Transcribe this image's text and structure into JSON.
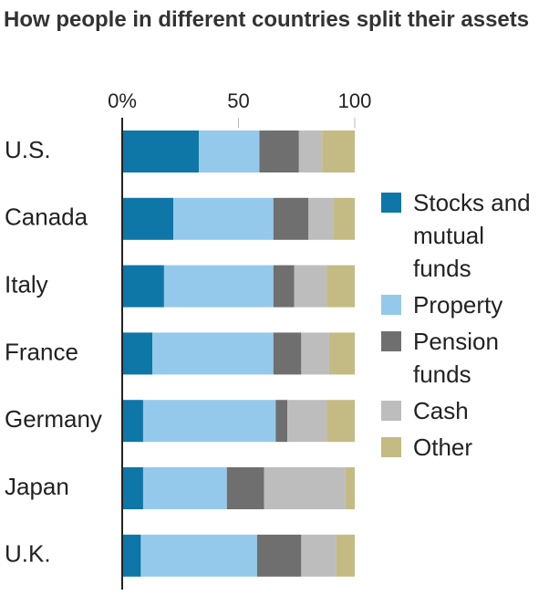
{
  "chart_data": {
    "type": "stacked-bar-horizontal",
    "title": "How people in different countries split their assets",
    "categories": [
      "U.S.",
      "Canada",
      "Italy",
      "France",
      "Germany",
      "Japan",
      "U.K."
    ],
    "series": [
      {
        "name": "Stocks and mutual funds",
        "color": "#0f76a8",
        "values": [
          33,
          22,
          18,
          13,
          9,
          9,
          8
        ]
      },
      {
        "name": "Property",
        "color": "#95c9ec",
        "values": [
          26,
          43,
          47,
          52,
          57,
          36,
          50
        ]
      },
      {
        "name": "Pension funds",
        "color": "#6f6f6f",
        "values": [
          17,
          15,
          9,
          12,
          5,
          16,
          19
        ]
      },
      {
        "name": "Cash",
        "color": "#bdbdbd",
        "values": [
          10,
          11,
          14,
          12,
          17,
          35,
          15
        ]
      },
      {
        "name": "Other",
        "color": "#c4ba83",
        "values": [
          14,
          9,
          12,
          11,
          12,
          4,
          8
        ]
      }
    ],
    "xlim": [
      0,
      100
    ],
    "xticks": [
      {
        "value": 0,
        "label": "0%"
      },
      50,
      100
    ]
  }
}
